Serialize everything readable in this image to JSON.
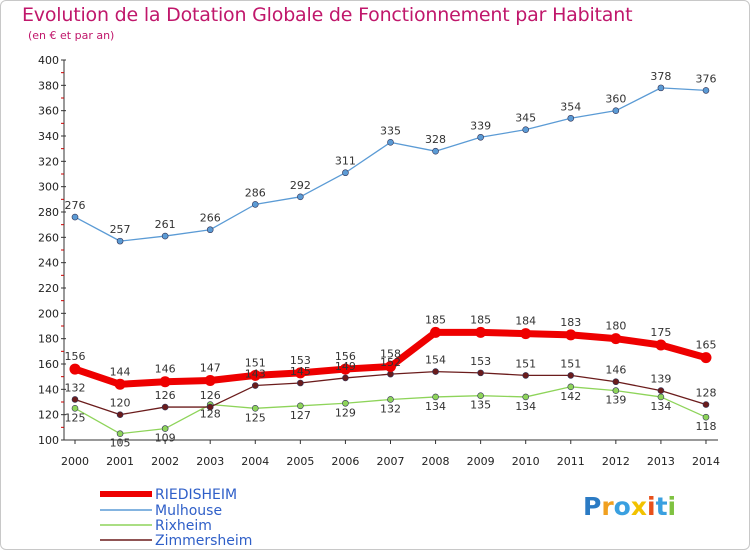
{
  "header": {
    "title": "Evolution de la Dotation Globale de Fonctionnement par Habitant",
    "subtitle": "(en € et par an)"
  },
  "chart_data": {
    "type": "line",
    "title": "Evolution de la Dotation Globale de Fonctionnement par Habitant",
    "subtitle": "(en € et par an)",
    "x": [
      "2000",
      "2001",
      "2002",
      "2003",
      "2004",
      "2005",
      "2006",
      "2007",
      "2008",
      "2009",
      "2010",
      "2011",
      "2012",
      "2013",
      "2014"
    ],
    "ylim": [
      100,
      400
    ],
    "yticks": [
      100,
      120,
      140,
      160,
      180,
      200,
      220,
      240,
      260,
      280,
      300,
      320,
      340,
      360,
      380,
      400
    ],
    "grid": false,
    "legend_position": "bottom-left",
    "series": [
      {
        "name": "RIEDISHEIM",
        "color": "#ee0000",
        "values": [
          156,
          144,
          146,
          147,
          151,
          153,
          156,
          158,
          185,
          185,
          184,
          183,
          180,
          175,
          165
        ]
      },
      {
        "name": "Mulhouse",
        "color": "#5b9bd5",
        "values": [
          276,
          257,
          261,
          266,
          286,
          292,
          311,
          335,
          328,
          339,
          345,
          354,
          360,
          378,
          376
        ]
      },
      {
        "name": "Rixheim",
        "color": "#8ed45a",
        "values": [
          125,
          105,
          109,
          128,
          125,
          127,
          129,
          132,
          134,
          135,
          134,
          142,
          139,
          134,
          118
        ]
      },
      {
        "name": "Zimmersheim",
        "color": "#6b1c1c",
        "values": [
          132,
          120,
          126,
          126,
          143,
          145,
          149,
          152,
          154,
          153,
          151,
          151,
          146,
          139,
          128
        ]
      }
    ]
  },
  "logo": {
    "text": "Proxiti",
    "letters": [
      {
        "ch": "P",
        "color": "#2b7bc4"
      },
      {
        "ch": "r",
        "color": "#f0a020"
      },
      {
        "ch": "o",
        "color": "#3aa0e0"
      },
      {
        "ch": "x",
        "color": "#f2c200"
      },
      {
        "ch": "i",
        "color": "#e8501a"
      },
      {
        "ch": "t",
        "color": "#3aa0e0"
      },
      {
        "ch": "i",
        "color": "#7fc241"
      }
    ]
  }
}
